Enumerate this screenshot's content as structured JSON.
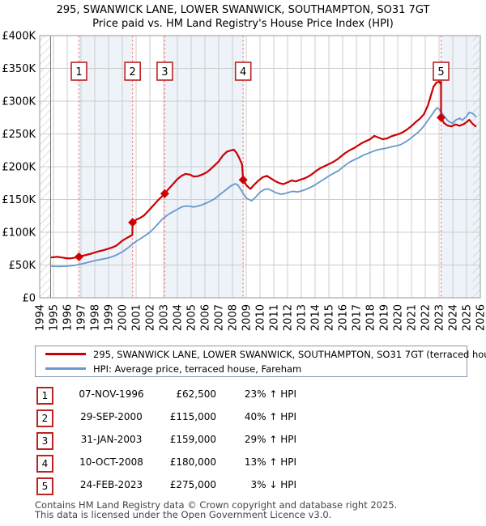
{
  "title": {
    "line1": "295, SWANWICK LANE, LOWER SWANWICK, SOUTHAMPTON, SO31 7GT",
    "line2": "Price paid vs. HM Land Registry's House Price Index (HPI)"
  },
  "legend": {
    "series1_label": "295, SWANWICK LANE, LOWER SWANWICK, SOUTHAMPTON, SO31 7GT (terraced house)",
    "series2_label": "HPI: Average price, terraced house, Fareham"
  },
  "transactions": [
    {
      "num": "1",
      "date": "07-NOV-1996",
      "price": "£62,500",
      "hpi": "23% ↑ HPI"
    },
    {
      "num": "2",
      "date": "29-SEP-2000",
      "price": "£115,000",
      "hpi": "40% ↑ HPI"
    },
    {
      "num": "3",
      "date": "31-JAN-2003",
      "price": "£159,000",
      "hpi": "29% ↑ HPI"
    },
    {
      "num": "4",
      "date": "10-OCT-2008",
      "price": "£180,000",
      "hpi": "13% ↑ HPI"
    },
    {
      "num": "5",
      "date": "24-FEB-2023",
      "price": "£275,000",
      "hpi": "3% ↓ HPI"
    }
  ],
  "footer": {
    "line1": "Contains HM Land Registry data © Crown copyright and database right 2025.",
    "line2": "This data is licensed under the Open Government Licence v3.0."
  },
  "colors": {
    "price_line": "#cc0000",
    "hpi_line": "#6699cc",
    "marker_fill": "#cc0000",
    "transaction_dash": "#ee8888",
    "number_box_border": "#bb2222",
    "band_fill": "#eef2f9",
    "grid": "#cccccc",
    "plot_border": "#999999",
    "hatch_line": "#bbbbbb",
    "data_start_line": "#777777"
  },
  "chart_data": {
    "type": "line",
    "title": "Price paid vs. HM Land Registry's House Price Index (HPI)",
    "x_axis": {
      "min": 1994,
      "max": 2026,
      "ticks": [
        1994,
        1995,
        1996,
        1997,
        1998,
        1999,
        2000,
        2001,
        2002,
        2003,
        2004,
        2005,
        2006,
        2007,
        2008,
        2009,
        2010,
        2011,
        2012,
        2013,
        2014,
        2015,
        2016,
        2017,
        2018,
        2019,
        2020,
        2021,
        2022,
        2023,
        2024,
        2025,
        2026
      ],
      "tick_rotation": -90
    },
    "y_axis": {
      "min": 0,
      "max": 400000,
      "tick_step": 50000,
      "tick_labels": [
        "£0",
        "£50K",
        "£100K",
        "£150K",
        "£200K",
        "£250K",
        "£300K",
        "£350K",
        "£400K"
      ]
    },
    "grid": true,
    "legend_position": "bottom",
    "hatch_regions": [
      [
        1994,
        1994.8
      ],
      [
        2025.45,
        2026
      ]
    ],
    "shaded_bands": [
      [
        1996.852,
        2000.745
      ],
      [
        2003.082,
        2008.775
      ],
      [
        2023.148,
        2026
      ]
    ],
    "transaction_lines": [
      {
        "label": "1",
        "x": 1996.852
      },
      {
        "label": "2",
        "x": 2000.745
      },
      {
        "label": "3",
        "x": 2003.082
      },
      {
        "label": "4",
        "x": 2008.775
      },
      {
        "label": "5",
        "x": 2023.148
      }
    ],
    "markers": [
      {
        "label": "1",
        "x": 1996.852,
        "y": 62500
      },
      {
        "label": "2",
        "x": 2000.745,
        "y": 115000
      },
      {
        "label": "3",
        "x": 2003.082,
        "y": 159000
      },
      {
        "label": "4",
        "x": 2008.775,
        "y": 180000
      },
      {
        "label": "5",
        "x": 2023.148,
        "y": 275000
      }
    ],
    "series": [
      {
        "name": "295, SWANWICK LANE, LOWER SWANWICK, SOUTHAMPTON, SO31 7GT (terraced house)",
        "color": "#cc0000",
        "width": 2.2,
        "points": [
          [
            1994.8,
            61500
          ],
          [
            1995.0,
            62000
          ],
          [
            1995.3,
            62500
          ],
          [
            1995.6,
            61500
          ],
          [
            1995.9,
            60500
          ],
          [
            1996.2,
            60000
          ],
          [
            1996.5,
            61000
          ],
          [
            1996.852,
            62500
          ],
          [
            1997.1,
            64000
          ],
          [
            1997.4,
            65500
          ],
          [
            1997.7,
            67000
          ],
          [
            1998.0,
            69000
          ],
          [
            1998.3,
            71000
          ],
          [
            1998.6,
            72500
          ],
          [
            1999.0,
            75000
          ],
          [
            1999.3,
            77000
          ],
          [
            1999.6,
            80000
          ],
          [
            2000.0,
            87000
          ],
          [
            2000.3,
            91000
          ],
          [
            2000.6,
            94500
          ],
          [
            2000.73,
            96000
          ],
          [
            2000.745,
            115000
          ],
          [
            2001.0,
            119000
          ],
          [
            2001.3,
            122000
          ],
          [
            2001.6,
            126000
          ],
          [
            2002.0,
            135000
          ],
          [
            2002.3,
            142000
          ],
          [
            2002.6,
            149000
          ],
          [
            2002.9,
            155000
          ],
          [
            2003.082,
            159000
          ],
          [
            2003.4,
            167000
          ],
          [
            2003.7,
            174000
          ],
          [
            2004.0,
            181000
          ],
          [
            2004.3,
            186000
          ],
          [
            2004.6,
            189000
          ],
          [
            2004.9,
            188000
          ],
          [
            2005.2,
            185000
          ],
          [
            2005.5,
            185500
          ],
          [
            2005.8,
            188000
          ],
          [
            2006.1,
            191000
          ],
          [
            2006.4,
            196000
          ],
          [
            2006.7,
            202000
          ],
          [
            2007.0,
            208000
          ],
          [
            2007.3,
            217000
          ],
          [
            2007.6,
            223000
          ],
          [
            2007.9,
            225000
          ],
          [
            2008.1,
            226000
          ],
          [
            2008.3,
            221000
          ],
          [
            2008.5,
            213000
          ],
          [
            2008.7,
            203000
          ],
          [
            2008.775,
            180000
          ],
          [
            2009.0,
            172000
          ],
          [
            2009.3,
            166000
          ],
          [
            2009.6,
            173000
          ],
          [
            2009.9,
            179000
          ],
          [
            2010.2,
            184000
          ],
          [
            2010.5,
            186000
          ],
          [
            2010.8,
            182000
          ],
          [
            2011.1,
            178000
          ],
          [
            2011.4,
            175000
          ],
          [
            2011.7,
            173500
          ],
          [
            2012.0,
            176000
          ],
          [
            2012.3,
            179000
          ],
          [
            2012.6,
            177500
          ],
          [
            2012.9,
            180000
          ],
          [
            2013.2,
            182000
          ],
          [
            2013.5,
            185000
          ],
          [
            2013.8,
            189000
          ],
          [
            2014.1,
            194000
          ],
          [
            2014.4,
            198000
          ],
          [
            2014.7,
            201000
          ],
          [
            2015.0,
            204000
          ],
          [
            2015.3,
            207000
          ],
          [
            2015.6,
            211000
          ],
          [
            2015.9,
            216000
          ],
          [
            2016.2,
            221000
          ],
          [
            2016.5,
            225000
          ],
          [
            2016.8,
            228000
          ],
          [
            2017.1,
            232000
          ],
          [
            2017.4,
            236000
          ],
          [
            2017.7,
            239000
          ],
          [
            2018.0,
            242000
          ],
          [
            2018.3,
            247000
          ],
          [
            2018.6,
            244500
          ],
          [
            2018.9,
            242000
          ],
          [
            2019.2,
            243000
          ],
          [
            2019.5,
            246000
          ],
          [
            2019.8,
            248000
          ],
          [
            2020.1,
            250000
          ],
          [
            2020.4,
            253000
          ],
          [
            2020.7,
            257000
          ],
          [
            2021.0,
            262000
          ],
          [
            2021.3,
            268000
          ],
          [
            2021.6,
            273000
          ],
          [
            2021.9,
            280000
          ],
          [
            2022.2,
            294000
          ],
          [
            2022.4,
            308000
          ],
          [
            2022.6,
            322000
          ],
          [
            2022.8,
            328000
          ],
          [
            2023.0,
            330000
          ],
          [
            2023.1,
            327000
          ],
          [
            2023.148,
            330000
          ],
          [
            2023.148,
            275000
          ],
          [
            2023.35,
            267000
          ],
          [
            2023.6,
            263000
          ],
          [
            2023.9,
            261500
          ],
          [
            2024.2,
            264500
          ],
          [
            2024.5,
            262500
          ],
          [
            2024.8,
            265000
          ],
          [
            2025.0,
            268000
          ],
          [
            2025.2,
            271500
          ],
          [
            2025.45,
            265000
          ],
          [
            2025.7,
            261000
          ]
        ]
      },
      {
        "name": "HPI: Average price, terraced house, Fareham",
        "color": "#6699cc",
        "width": 1.8,
        "points": [
          [
            1994.8,
            48500
          ],
          [
            1995.1,
            48000
          ],
          [
            1995.4,
            47800
          ],
          [
            1995.7,
            48000
          ],
          [
            1996.0,
            48300
          ],
          [
            1996.3,
            49000
          ],
          [
            1996.6,
            49800
          ],
          [
            1996.852,
            50800
          ],
          [
            1997.2,
            52500
          ],
          [
            1997.5,
            54000
          ],
          [
            1997.8,
            55500
          ],
          [
            1998.1,
            57000
          ],
          [
            1998.4,
            58500
          ],
          [
            1998.7,
            59500
          ],
          [
            1999.0,
            61000
          ],
          [
            1999.3,
            63000
          ],
          [
            1999.6,
            65500
          ],
          [
            2000.0,
            70000
          ],
          [
            2000.4,
            76000
          ],
          [
            2000.745,
            82000
          ],
          [
            2001.0,
            86000
          ],
          [
            2001.3,
            90000
          ],
          [
            2001.6,
            94000
          ],
          [
            2002.0,
            100000
          ],
          [
            2002.3,
            106000
          ],
          [
            2002.6,
            113000
          ],
          [
            2002.9,
            120000
          ],
          [
            2003.082,
            123000
          ],
          [
            2003.4,
            128000
          ],
          [
            2003.7,
            131500
          ],
          [
            2004.0,
            135000
          ],
          [
            2004.3,
            138500
          ],
          [
            2004.6,
            140000
          ],
          [
            2004.9,
            139500
          ],
          [
            2005.2,
            138500
          ],
          [
            2005.5,
            140000
          ],
          [
            2005.8,
            142000
          ],
          [
            2006.1,
            144500
          ],
          [
            2006.4,
            147500
          ],
          [
            2006.7,
            151000
          ],
          [
            2007.0,
            156000
          ],
          [
            2007.3,
            161000
          ],
          [
            2007.6,
            166000
          ],
          [
            2007.9,
            171000
          ],
          [
            2008.2,
            174000
          ],
          [
            2008.4,
            172000
          ],
          [
            2008.775,
            159300
          ],
          [
            2009.0,
            152000
          ],
          [
            2009.4,
            148000
          ],
          [
            2009.7,
            154000
          ],
          [
            2010.0,
            161000
          ],
          [
            2010.3,
            165000
          ],
          [
            2010.6,
            166000
          ],
          [
            2010.9,
            163000
          ],
          [
            2011.2,
            160000
          ],
          [
            2011.5,
            158000
          ],
          [
            2011.8,
            159000
          ],
          [
            2012.1,
            161000
          ],
          [
            2012.4,
            162500
          ],
          [
            2012.7,
            161500
          ],
          [
            2013.0,
            163000
          ],
          [
            2013.3,
            165000
          ],
          [
            2013.6,
            168000
          ],
          [
            2013.9,
            171000
          ],
          [
            2014.2,
            175000
          ],
          [
            2014.5,
            179000
          ],
          [
            2014.8,
            183000
          ],
          [
            2015.1,
            187000
          ],
          [
            2015.4,
            190500
          ],
          [
            2015.7,
            194000
          ],
          [
            2016.0,
            199000
          ],
          [
            2016.3,
            204000
          ],
          [
            2016.6,
            208000
          ],
          [
            2016.9,
            211000
          ],
          [
            2017.2,
            214000
          ],
          [
            2017.5,
            217500
          ],
          [
            2017.8,
            220000
          ],
          [
            2018.1,
            222500
          ],
          [
            2018.4,
            225000
          ],
          [
            2018.7,
            226500
          ],
          [
            2019.0,
            227500
          ],
          [
            2019.3,
            229000
          ],
          [
            2019.6,
            230500
          ],
          [
            2019.9,
            232000
          ],
          [
            2020.2,
            233500
          ],
          [
            2020.5,
            237000
          ],
          [
            2020.8,
            241000
          ],
          [
            2021.1,
            246000
          ],
          [
            2021.4,
            251000
          ],
          [
            2021.7,
            257000
          ],
          [
            2022.0,
            265000
          ],
          [
            2022.3,
            274000
          ],
          [
            2022.6,
            283000
          ],
          [
            2022.85,
            290000
          ],
          [
            2023.0,
            288000
          ],
          [
            2023.148,
            283500
          ],
          [
            2023.4,
            276000
          ],
          [
            2023.7,
            269000
          ],
          [
            2024.0,
            266000
          ],
          [
            2024.2,
            271000
          ],
          [
            2024.5,
            274000
          ],
          [
            2024.7,
            271000
          ],
          [
            2025.0,
            277000
          ],
          [
            2025.2,
            283000
          ],
          [
            2025.45,
            281000
          ],
          [
            2025.7,
            276000
          ]
        ]
      }
    ]
  }
}
